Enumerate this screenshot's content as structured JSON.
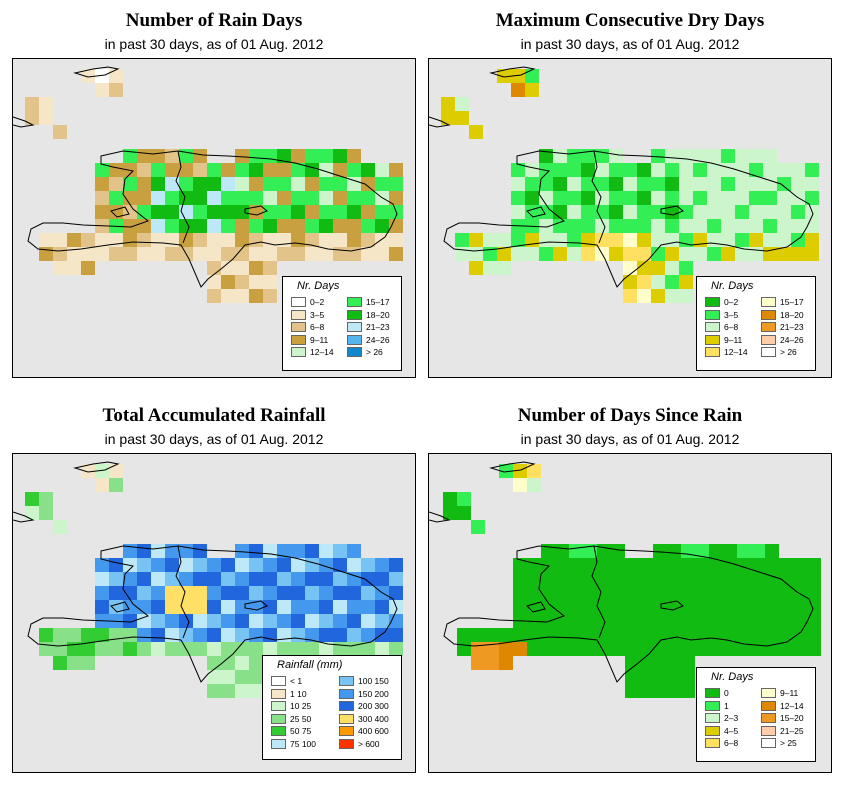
{
  "panels": [
    {
      "title": "Number of Rain Days",
      "subtitle": "in past 30 days, as of  01 Aug. 2012",
      "legend_title": "Nr. Days",
      "legend": [
        {
          "label": "0–2",
          "color": "#ffffff"
        },
        {
          "label": "3–5",
          "color": "#f5e6c8"
        },
        {
          "label": "6–8",
          "color": "#e2c48a"
        },
        {
          "label": "9–11",
          "color": "#c8a040"
        },
        {
          "label": "12–14",
          "color": "#ccf5cc"
        },
        {
          "label": "15–17",
          "color": "#33ee55"
        },
        {
          "label": "18–20",
          "color": "#11bb11"
        },
        {
          "label": "21–23",
          "color": "#bde8f8"
        },
        {
          "label": "24–26",
          "color": "#55b6ee"
        },
        {
          "label": "> 26",
          "color": "#1188cc"
        }
      ]
    },
    {
      "title": "Maximum Consecutive Dry Days",
      "subtitle": "in past 30 days, as of  01 Aug. 2012",
      "legend_title": "Nr. Days",
      "legend": [
        {
          "label": "0–2",
          "color": "#11bb11"
        },
        {
          "label": "3–5",
          "color": "#33ee55"
        },
        {
          "label": "6–8",
          "color": "#ccf5cc"
        },
        {
          "label": "9–11",
          "color": "#ddcc00"
        },
        {
          "label": "12–14",
          "color": "#ffe060"
        },
        {
          "label": "15–17",
          "color": "#ffffcc"
        },
        {
          "label": "18–20",
          "color": "#dd8800"
        },
        {
          "label": "21–23",
          "color": "#ee9922"
        },
        {
          "label": "24–26",
          "color": "#ffccaa"
        },
        {
          "label": "> 26",
          "color": "#ffffff"
        }
      ]
    },
    {
      "title": "Total Accumulated Rainfall",
      "subtitle": "in past 30 days, as of  01 Aug. 2012",
      "legend_title": "Rainfall (mm)",
      "legend": [
        {
          "label": "< 1",
          "color": "#ffffff"
        },
        {
          "label": "1   10",
          "color": "#f5e6c8"
        },
        {
          "label": "10   25",
          "color": "#ccf5cc"
        },
        {
          "label": "25   50",
          "color": "#88e088"
        },
        {
          "label": "50   75",
          "color": "#33cc33"
        },
        {
          "label": "75  100",
          "color": "#bde8f8"
        },
        {
          "label": "100  150",
          "color": "#77c4f4"
        },
        {
          "label": "150  200",
          "color": "#4499ee"
        },
        {
          "label": "200  300",
          "color": "#2266dd"
        },
        {
          "label": "300  400",
          "color": "#ffe066"
        },
        {
          "label": "400  600",
          "color": "#ff9900"
        },
        {
          "label": "> 600",
          "color": "#ff3300"
        }
      ]
    },
    {
      "title": "Number of Days Since Rain",
      "subtitle": "in past 30 days, as of  01 Aug. 2012",
      "legend_title": "Nr. Days",
      "legend": [
        {
          "label": "0",
          "color": "#11bb11"
        },
        {
          "label": "1",
          "color": "#33ee55"
        },
        {
          "label": "2–3",
          "color": "#ccf5cc"
        },
        {
          "label": "4–5",
          "color": "#ddcc00"
        },
        {
          "label": "6–8",
          "color": "#ffe060"
        },
        {
          "label": "9–11",
          "color": "#ffffcc"
        },
        {
          "label": "12–14",
          "color": "#dd8800"
        },
        {
          "label": "15–20",
          "color": "#ee9922"
        },
        {
          "label": "21–25",
          "color": "#ffccaa"
        },
        {
          "label": "> 25",
          "color": "#ffffff"
        }
      ]
    }
  ]
}
